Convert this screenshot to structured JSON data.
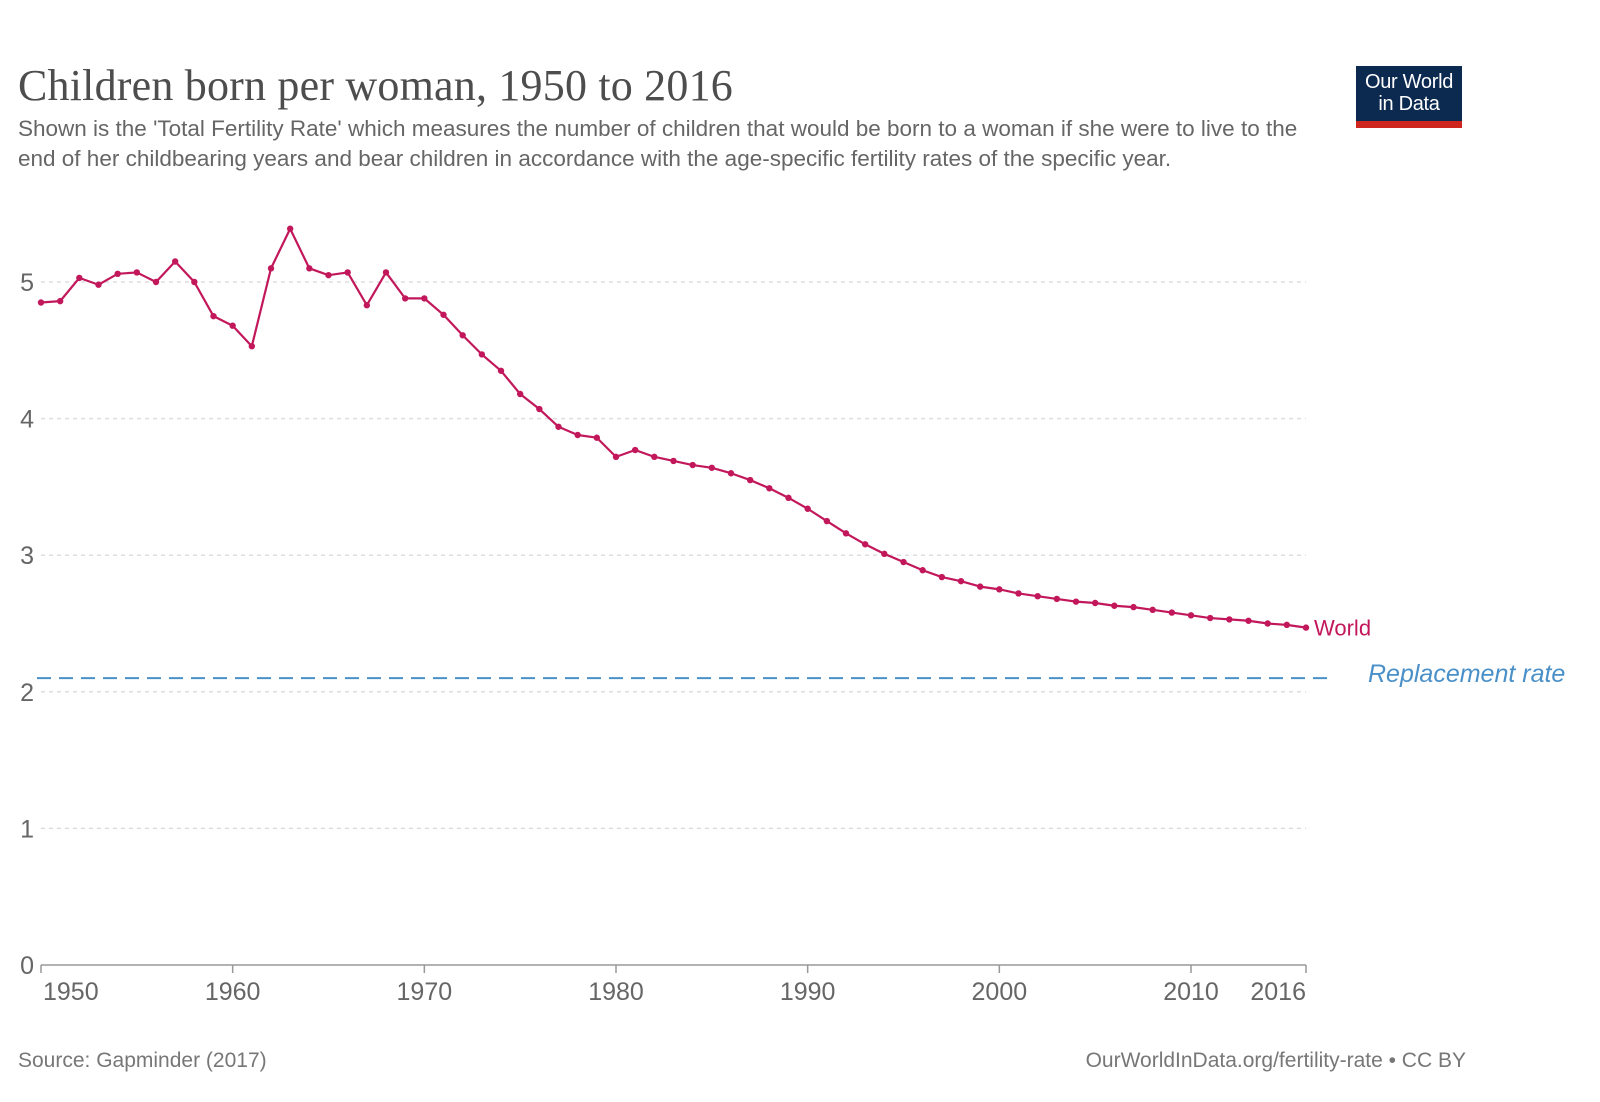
{
  "header": {
    "title": "Children born per woman, 1950 to 2016",
    "subtitle": "Shown is the 'Total Fertility Rate' which measures the number of children that would be born to a woman if she were to live to the end of her childbearing years and bear children in accordance with the age-specific fertility rates of the specific year."
  },
  "logo": {
    "line1": "Our World",
    "line2": "in Data",
    "bg": "#0c2a50",
    "accent": "#ce261e"
  },
  "footer": {
    "source": "Source: Gapminder (2017)",
    "license": "OurWorldInData.org/fertility-rate • CC BY"
  },
  "chart_data": {
    "type": "line",
    "title": "Children born per woman, 1950 to 2016",
    "xlabel": "",
    "ylabel": "",
    "xlim": [
      1950,
      2016
    ],
    "ylim": [
      0,
      5.5
    ],
    "x_ticks": [
      "1950",
      "1960",
      "1970",
      "1980",
      "1990",
      "2000",
      "2010",
      "2016"
    ],
    "y_ticks": [
      "0",
      "1",
      "2",
      "3",
      "4",
      "5"
    ],
    "grid": "horizontal dashed",
    "series": [
      {
        "name": "World",
        "color": "#c2185b",
        "x": [
          1950,
          1951,
          1952,
          1953,
          1954,
          1955,
          1956,
          1957,
          1958,
          1959,
          1960,
          1961,
          1962,
          1963,
          1964,
          1965,
          1966,
          1967,
          1968,
          1969,
          1970,
          1971,
          1972,
          1973,
          1974,
          1975,
          1976,
          1977,
          1978,
          1979,
          1980,
          1981,
          1982,
          1983,
          1984,
          1985,
          1986,
          1987,
          1988,
          1989,
          1990,
          1991,
          1992,
          1993,
          1994,
          1995,
          1996,
          1997,
          1998,
          1999,
          2000,
          2001,
          2002,
          2003,
          2004,
          2005,
          2006,
          2007,
          2008,
          2009,
          2010,
          2011,
          2012,
          2013,
          2014,
          2015,
          2016
        ],
        "values": [
          4.85,
          4.86,
          5.03,
          4.98,
          5.06,
          5.07,
          5.0,
          5.15,
          5.0,
          4.75,
          4.68,
          4.53,
          5.1,
          5.39,
          5.1,
          5.05,
          5.07,
          4.83,
          5.07,
          4.88,
          4.88,
          4.76,
          4.61,
          4.47,
          4.35,
          4.18,
          4.07,
          3.94,
          3.88,
          3.86,
          3.72,
          3.77,
          3.72,
          3.69,
          3.66,
          3.64,
          3.6,
          3.55,
          3.49,
          3.42,
          3.34,
          3.25,
          3.16,
          3.08,
          3.01,
          2.95,
          2.89,
          2.84,
          2.81,
          2.77,
          2.75,
          2.72,
          2.7,
          2.68,
          2.66,
          2.65,
          2.63,
          2.62,
          2.6,
          2.58,
          2.56,
          2.54,
          2.53,
          2.52,
          2.5,
          2.49,
          2.47
        ]
      }
    ],
    "reference_line": {
      "label": "Replacement rate",
      "value": 2.1,
      "color": "#4a90c8",
      "style": "dashed"
    }
  }
}
